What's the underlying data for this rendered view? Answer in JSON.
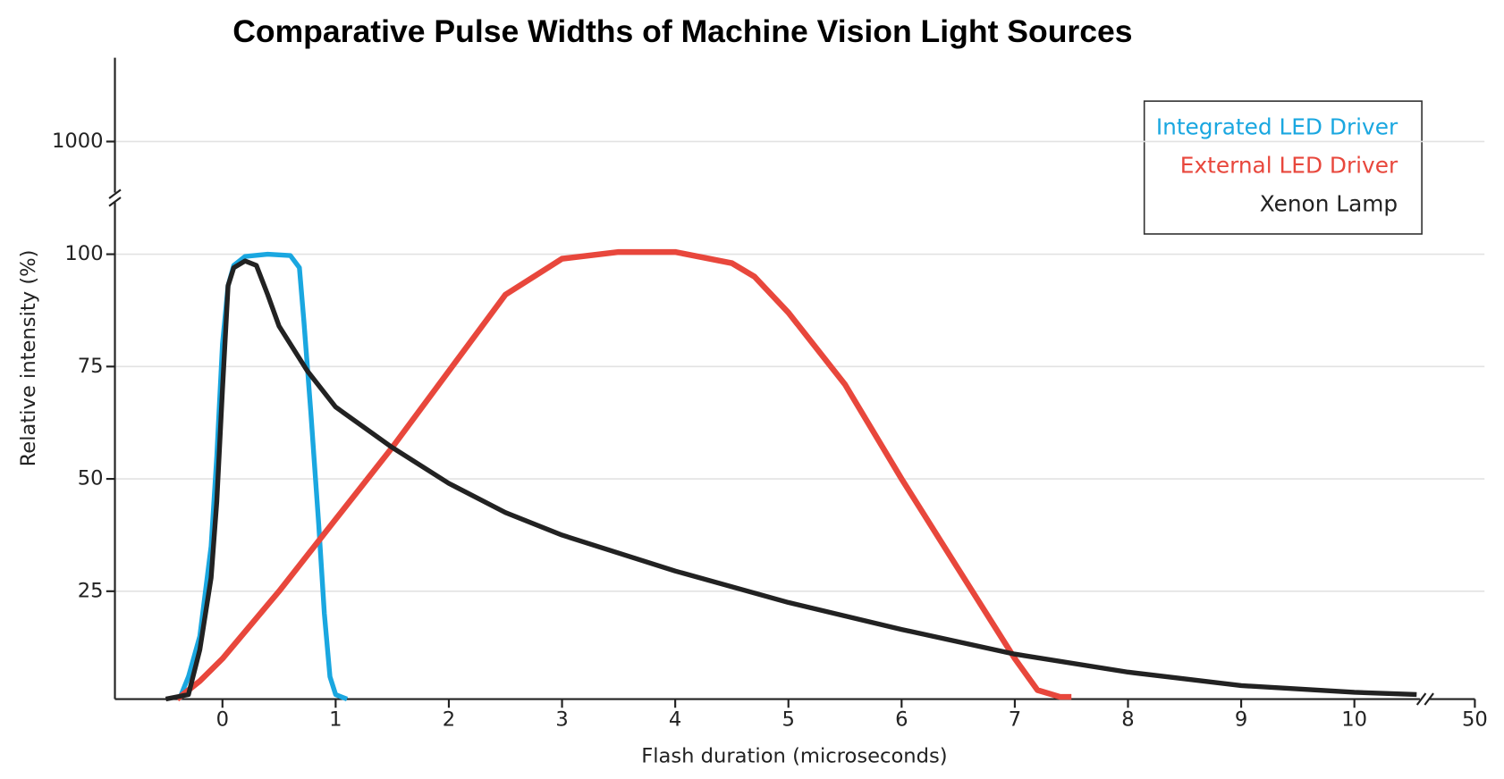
{
  "chart_data": {
    "type": "line",
    "title": "Comparative Pulse Widths of Machine Vision Light Sources",
    "x_label": "Flash duration (microseconds)",
    "y_label": "Relative intensity (%)",
    "xlim": [
      -0.95,
      50
    ],
    "xticks": [
      0,
      1,
      2,
      3,
      4,
      5,
      6,
      7,
      8,
      9,
      10,
      50
    ],
    "ylim": [
      1,
      1200
    ],
    "yticks": [
      25,
      50,
      75,
      100,
      1000
    ],
    "x_axis_break": true,
    "y_axis_break": true,
    "grid": true,
    "legend": "upper right",
    "series": [
      {
        "name": "Integrated LED Driver",
        "color": "#1aa7e0",
        "x": [
          -0.38,
          -0.3,
          -0.2,
          -0.1,
          -0.05,
          0,
          0.05,
          0.1,
          0.2,
          0.4,
          0.6,
          0.68,
          0.72,
          0.78,
          0.85,
          0.9,
          0.95,
          1.0,
          1.1
        ],
        "values": [
          1,
          6,
          15,
          35,
          55,
          80,
          93,
          97.5,
          99.5,
          100,
          99.7,
          97,
          85,
          65,
          40,
          20,
          6,
          2,
          1
        ]
      },
      {
        "name": "External LED Driver",
        "color": "#e8473c",
        "x": [
          -0.4,
          -0.2,
          0,
          0.5,
          1,
          1.5,
          2,
          2.5,
          3,
          3.5,
          4,
          4.5,
          4.7,
          5,
          5.5,
          6,
          6.5,
          7,
          7.2,
          7.4,
          7.5
        ],
        "values": [
          1,
          5,
          10,
          25,
          41,
          57,
          74,
          91,
          99,
          100.5,
          100.5,
          98,
          95,
          87,
          71,
          50,
          30,
          10,
          3,
          1.5,
          1.5
        ]
      },
      {
        "name": "Xenon Lamp",
        "color": "#222222",
        "x": [
          -0.5,
          -0.3,
          -0.2,
          -0.1,
          -0.05,
          0,
          0.05,
          0.1,
          0.2,
          0.3,
          0.4,
          0.5,
          0.75,
          1,
          1.5,
          2,
          2.5,
          3,
          4,
          5,
          6,
          7,
          8,
          9,
          10,
          10.55
        ],
        "values": [
          1,
          2,
          12,
          28,
          45,
          70,
          93,
          97,
          98.5,
          97.5,
          91,
          84,
          74,
          66,
          57,
          49,
          42.5,
          37.5,
          29.5,
          22.5,
          16.5,
          11,
          7,
          4,
          2.5,
          2
        ]
      }
    ]
  }
}
